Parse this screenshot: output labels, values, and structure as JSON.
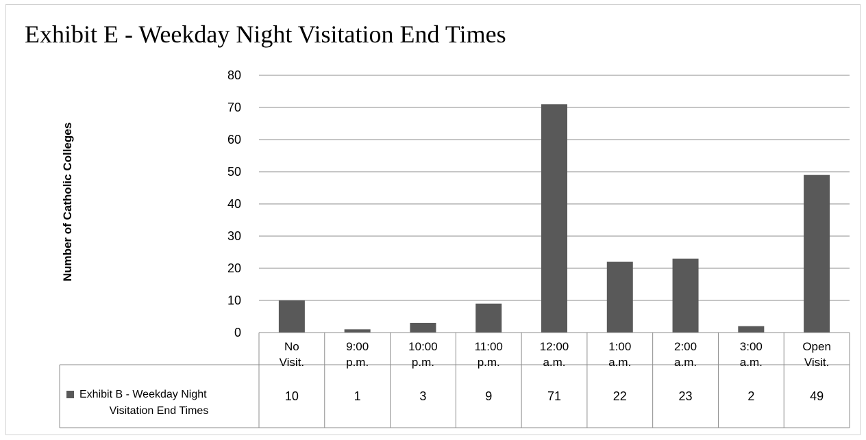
{
  "chart_data": {
    "type": "bar",
    "title": "Exhibit E - Weekday Night Visitation End Times",
    "xlabel": "",
    "ylabel": "Number of Catholic Colleges",
    "ylim": [
      0,
      80
    ],
    "yticks": [
      0,
      10,
      20,
      30,
      40,
      50,
      60,
      70,
      80
    ],
    "grid": true,
    "categories": [
      [
        "No",
        "Visit."
      ],
      [
        "9:00",
        "p.m."
      ],
      [
        "10:00",
        "p.m."
      ],
      [
        "11:00",
        "p.m."
      ],
      [
        "12:00",
        "a.m."
      ],
      [
        "1:00",
        "a.m."
      ],
      [
        "2:00",
        "a.m."
      ],
      [
        "3:00",
        "a.m."
      ],
      [
        "Open",
        "Visit."
      ]
    ],
    "series": [
      {
        "name": [
          "Exhibit B - Weekday Night",
          "Visitation End Times"
        ],
        "color": "#595959",
        "values": [
          10,
          1,
          3,
          9,
          71,
          22,
          23,
          2,
          49
        ]
      }
    ],
    "legend": "data-table-bottom-left"
  }
}
